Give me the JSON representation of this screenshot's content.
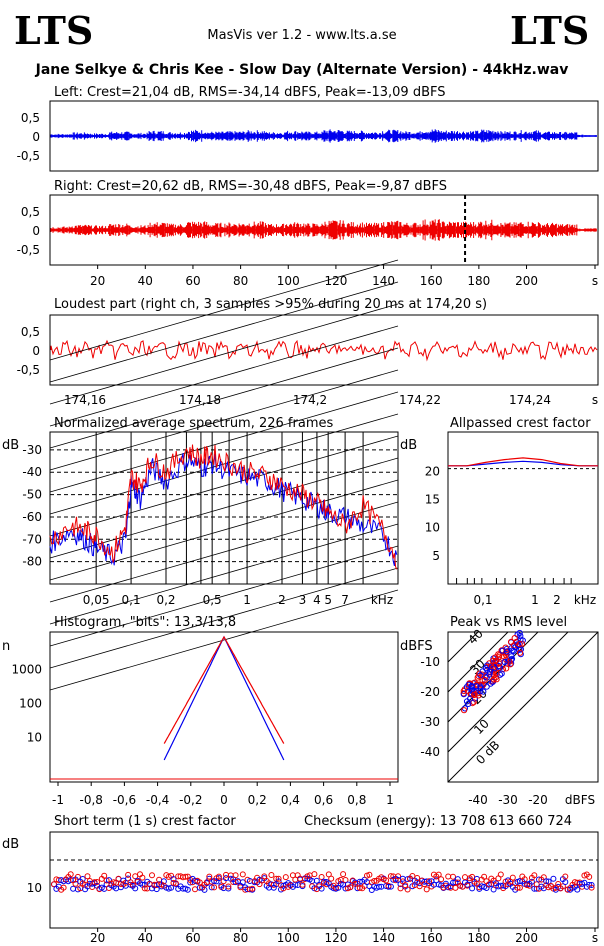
{
  "header": {
    "logo_left": "LTS",
    "logo_right": "LTS",
    "app": "MasVis ver 1.2 - www.lts.a.se",
    "file_title": "Jane Selkye & Chris Kee - Slow Day (Alternate Version) - 44kHz.wav"
  },
  "colors": {
    "left": "#0000ee",
    "right": "#ee0000",
    "grid": "#000000"
  },
  "chart_data": [
    {
      "id": "left",
      "type": "line",
      "title": "Left: Crest=21,04 dB, RMS=-34,14 dBFS, Peak=-13,09 dBFS",
      "yticks": [
        "0,5",
        "0",
        "-0,5"
      ],
      "ylim": [
        -1,
        1
      ],
      "xlim": [
        0,
        230
      ],
      "series": [
        {
          "values": [
            0.05,
            0.08,
            0.06,
            0.1,
            0.07,
            0.12,
            0.09,
            0.14,
            0.1,
            0.11,
            0.13,
            0.09,
            0.12,
            0.1,
            0.15,
            0.12,
            0.1,
            0.14,
            0.11,
            0.16,
            0.13,
            0.12,
            0.15,
            0.11,
            0.13,
            0.1,
            0.09,
            0.03
          ]
        }
      ]
    },
    {
      "id": "right",
      "type": "line",
      "title": "Right: Crest=20,62 dB, RMS=-30,48 dBFS, Peak=-9,87 dBFS",
      "yticks": [
        "0,5",
        "0",
        "-0,5"
      ],
      "ylim": [
        -1,
        1
      ],
      "xlim": [
        0,
        230
      ],
      "xticks": [
        "20",
        "40",
        "60",
        "80",
        "100",
        "120",
        "140",
        "160",
        "180",
        "200",
        "s"
      ],
      "marker_x": 174.2,
      "series": [
        {
          "values": [
            0.08,
            0.12,
            0.1,
            0.15,
            0.11,
            0.18,
            0.14,
            0.2,
            0.16,
            0.17,
            0.19,
            0.14,
            0.18,
            0.15,
            0.22,
            0.18,
            0.16,
            0.21,
            0.17,
            0.24,
            0.2,
            0.19,
            0.23,
            0.17,
            0.2,
            0.16,
            0.14,
            0.04
          ]
        }
      ]
    },
    {
      "id": "loudest",
      "type": "line",
      "title": "Loudest part (right ch, 3 samples >95% during 20 ms at 174,20 s)",
      "yticks": [
        "0,5",
        "0",
        "-0,5"
      ],
      "xticks": [
        "174,16",
        "174,18",
        "174,2",
        "174,22",
        "174,24",
        "s"
      ],
      "ylim": [
        -1,
        1
      ]
    },
    {
      "id": "spectrum",
      "type": "line",
      "title": "Normalized average spectrum, 226 frames",
      "ylabel": "dB",
      "yticks": [
        "-30",
        "-40",
        "-50",
        "-60",
        "-70",
        "-80"
      ],
      "xticks": [
        "0,05",
        "0,1",
        "0,2",
        "0,5",
        "1",
        "2",
        "3",
        "4",
        "5",
        "7",
        "kHz"
      ],
      "xlabel": "kHz",
      "x": [
        0.02,
        0.03,
        0.04,
        0.05,
        0.07,
        0.09,
        0.1,
        0.12,
        0.15,
        0.2,
        0.3,
        0.4,
        0.5,
        0.7,
        1,
        1.5,
        2,
        3,
        4,
        5,
        7,
        10,
        15,
        20
      ],
      "series": [
        {
          "color": "#0000ee",
          "values": [
            -72,
            -66,
            -70,
            -74,
            -78,
            -70,
            -45,
            -52,
            -38,
            -44,
            -34,
            -38,
            -36,
            -40,
            -42,
            -44,
            -48,
            -52,
            -55,
            -58,
            -60,
            -64,
            -68,
            -80
          ]
        },
        {
          "color": "#ee0000",
          "values": [
            -70,
            -64,
            -66,
            -68,
            -76,
            -64,
            -42,
            -46,
            -34,
            -40,
            -30,
            -34,
            -32,
            -36,
            -40,
            -42,
            -46,
            -50,
            -54,
            -58,
            -64,
            -55,
            -66,
            -80
          ]
        }
      ]
    },
    {
      "id": "crestfactor",
      "type": "line",
      "title": "Allpassed crest factor",
      "ylabel": "dB",
      "yticks": [
        "20",
        "15",
        "10",
        "5"
      ],
      "xticks": [
        "0,1",
        "1",
        "2",
        "kHz"
      ],
      "series": [
        {
          "color": "#0000ee",
          "values": [
            21,
            21,
            21.3,
            21.6,
            21.8,
            21.6,
            21.2,
            21,
            21
          ]
        },
        {
          "color": "#ee0000",
          "values": [
            21,
            21,
            21.6,
            22.1,
            22.4,
            22.1,
            21.4,
            21,
            21
          ]
        }
      ]
    },
    {
      "id": "histogram",
      "type": "line",
      "title": "Histogram, \"bits\": 13,3/13,8",
      "ylabel": "n",
      "yticks": [
        "1000",
        "100",
        "10"
      ],
      "xticks": [
        "-1",
        "-0,8",
        "-0,6",
        "-0,4",
        "-0,2",
        "0",
        "0,2",
        "0,4",
        "0,6",
        "0,8",
        "1"
      ],
      "xlim": [
        -1,
        1
      ]
    },
    {
      "id": "peak_rms",
      "type": "scatter",
      "title": "Peak vs RMS level",
      "ylabel": "dBFS",
      "xlabel": "dBFS",
      "yticks": [
        "-10",
        "-20",
        "-30",
        "-40"
      ],
      "xticks": [
        "-40",
        "-30",
        "-20",
        "dBFS"
      ],
      "diag_labels": [
        "40",
        "30",
        "20",
        "10",
        "0 dB"
      ]
    },
    {
      "id": "short_term",
      "type": "scatter",
      "title": "Short term (1 s) crest factor",
      "checksum": "Checksum (energy):  13 708 613 660 724",
      "ylabel": "dB",
      "yticks": [
        "10"
      ],
      "xticks": [
        "20",
        "40",
        "60",
        "80",
        "100",
        "120",
        "140",
        "160",
        "180",
        "200",
        "s"
      ]
    }
  ]
}
